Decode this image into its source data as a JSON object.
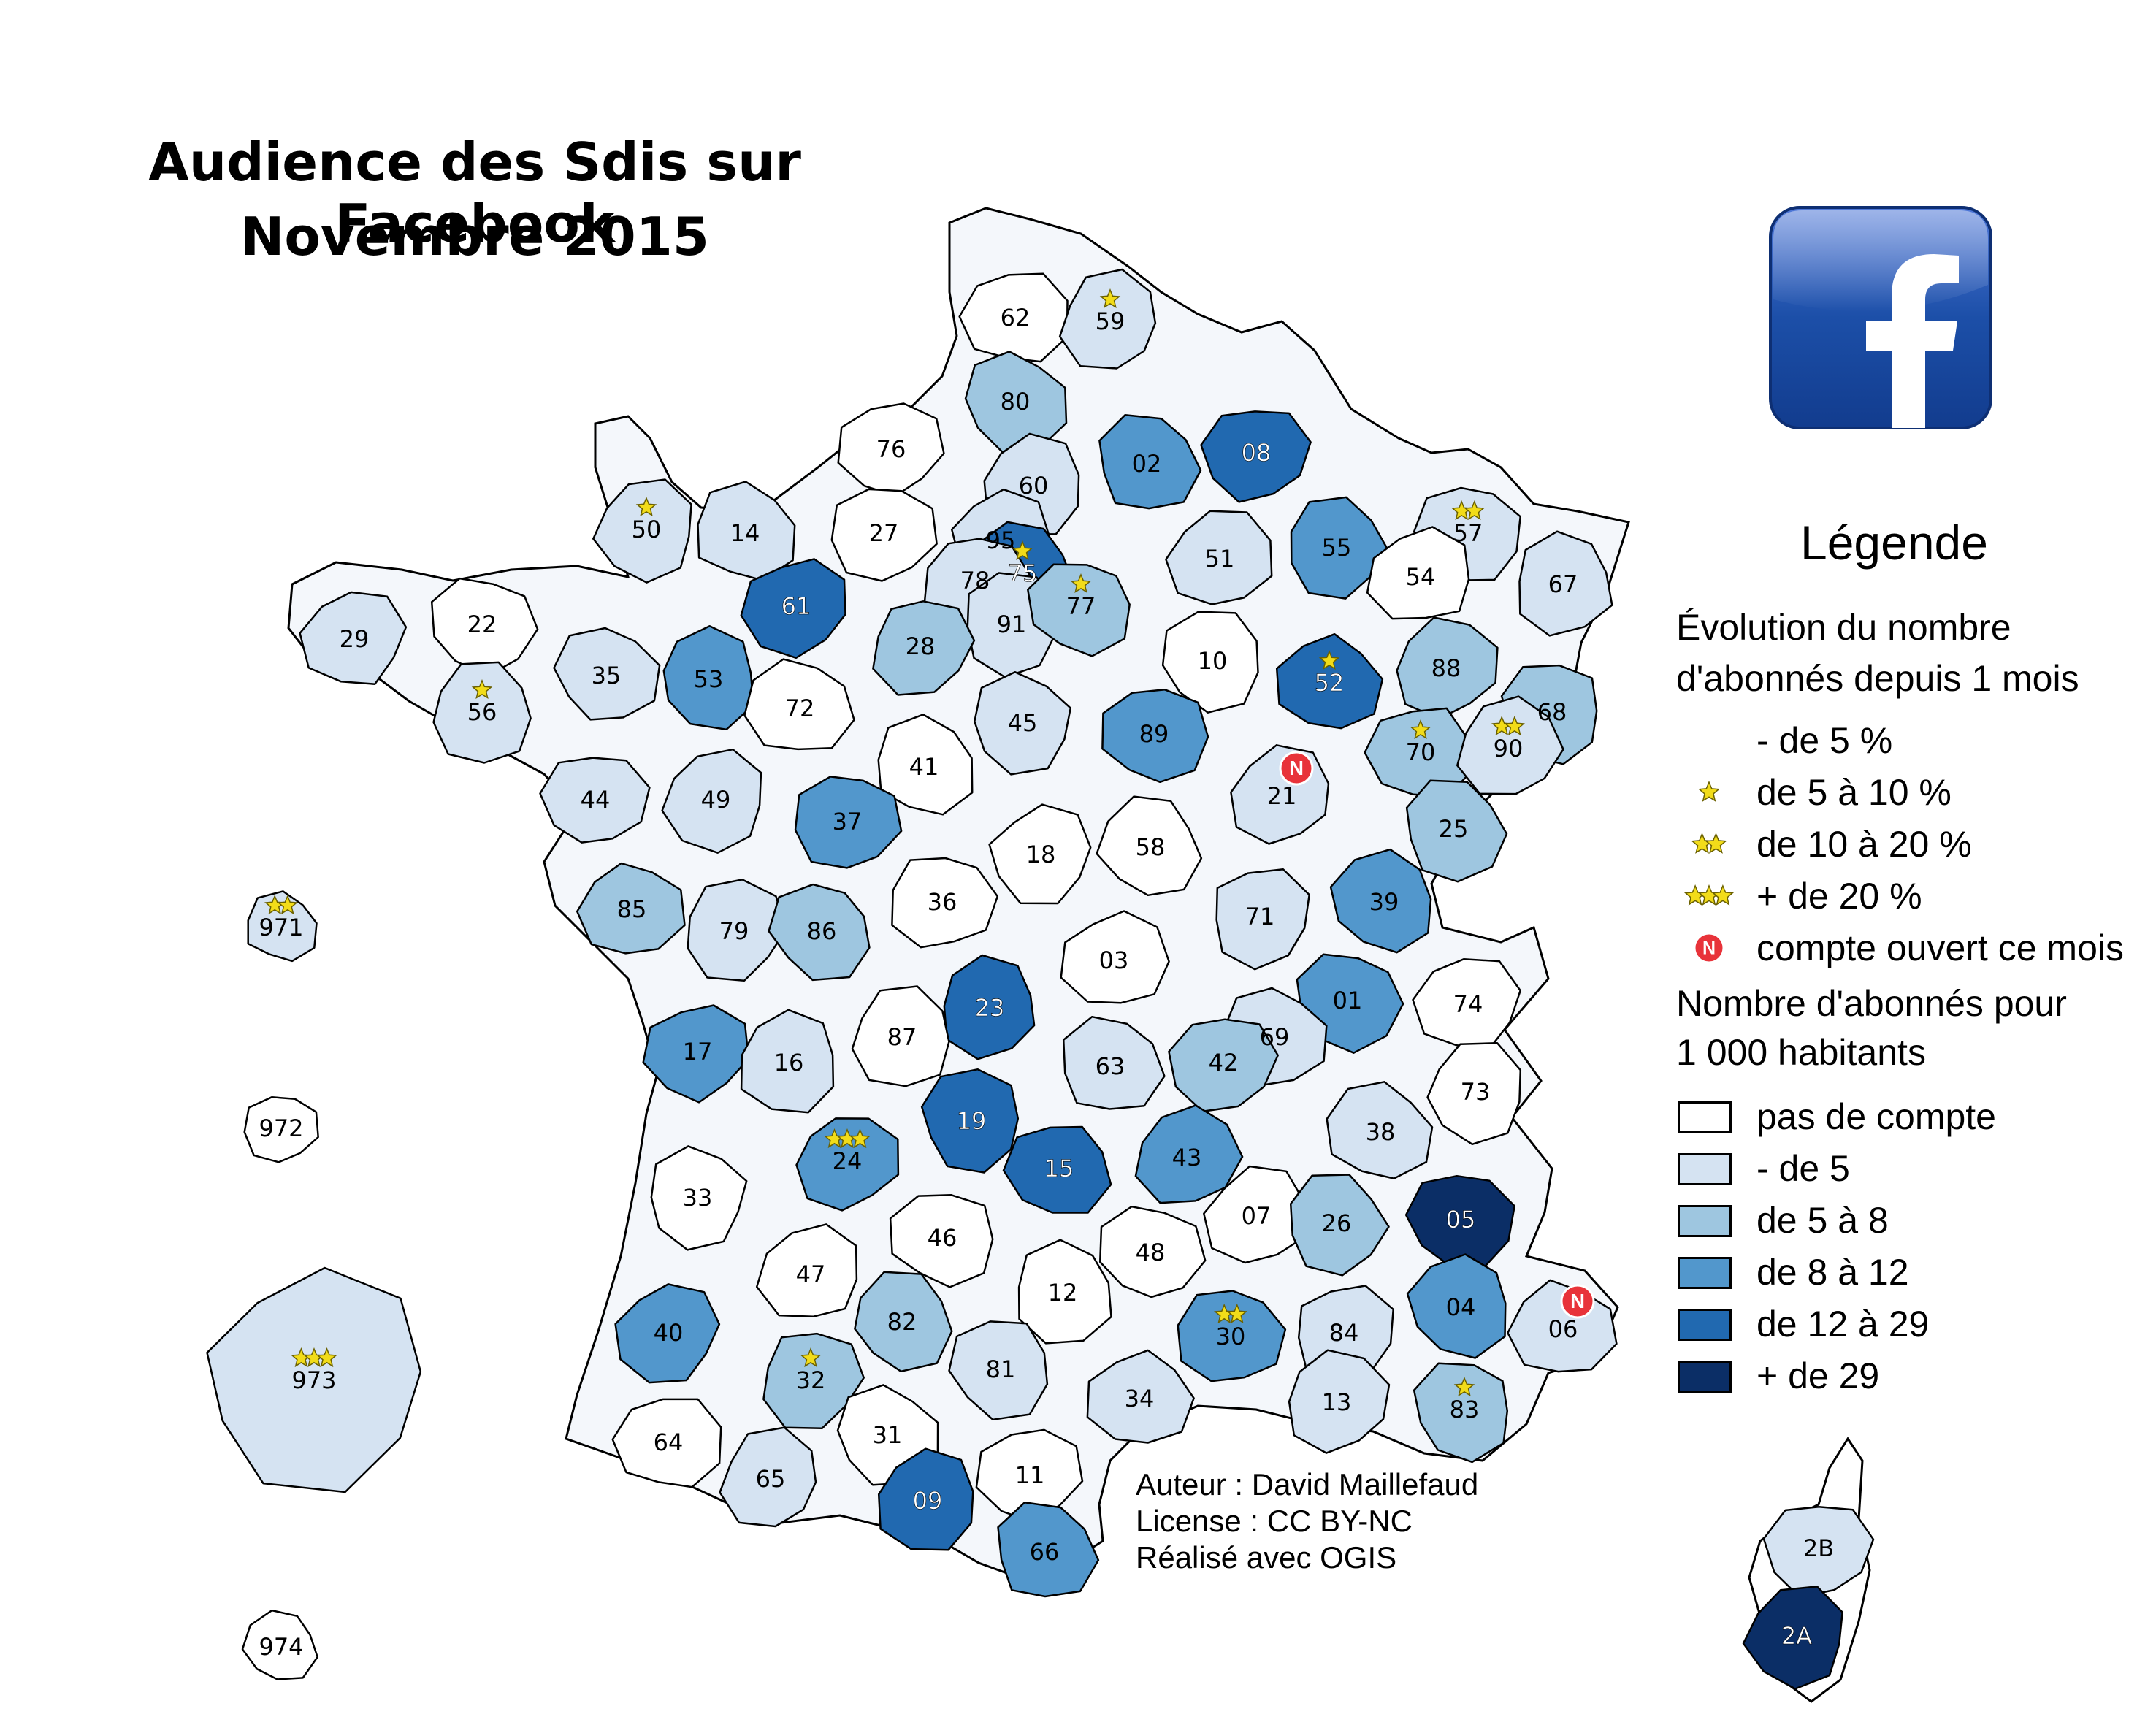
{
  "title": {
    "line1": "Audience des Sdis sur Facebook",
    "line2": "Novembre 2015"
  },
  "logo": {
    "icon": "facebook-icon",
    "letter": "f",
    "color": "#1c4fa8"
  },
  "legend": {
    "title": "Légende",
    "evolution_heading": [
      "Évolution du nombre",
      "d'abonnés depuis 1 mois"
    ],
    "evolution_items": [
      {
        "label": "- de 5 %",
        "stars": 0
      },
      {
        "label": "de 5 à 10 %",
        "stars": 1
      },
      {
        "label": "de 10 à 20 %",
        "stars": 2
      },
      {
        "label": "+ de 20 %",
        "stars": 3
      },
      {
        "label": "compte ouvert ce mois",
        "marker": "N"
      }
    ],
    "density_heading": [
      "Nombre d'abonnés pour",
      "1 000 habitants"
    ],
    "density_classes": [
      {
        "label": "pas de compte",
        "color": "#ffffff"
      },
      {
        "label": "- de 5",
        "color": "#d5e3f2"
      },
      {
        "label": "de 5 à 8",
        "color": "#9ec6e0"
      },
      {
        "label": "de 8 à 12",
        "color": "#5297cc"
      },
      {
        "label": "de 12 à 29",
        "color": "#2169b0"
      },
      {
        "label": "+ de 29",
        "color": "#0b2e66"
      }
    ]
  },
  "credits": {
    "author": "Auteur : David Maillefaud",
    "license": "License : CC BY-NC",
    "tool": "Réalisé avec OGIS"
  },
  "departments": [
    {
      "code": "62",
      "class": 0,
      "stars": 0
    },
    {
      "code": "59",
      "class": 1,
      "stars": 1
    },
    {
      "code": "80",
      "class": 2,
      "stars": 0
    },
    {
      "code": "76",
      "class": 0,
      "stars": 0
    },
    {
      "code": "60",
      "class": 1,
      "stars": 0
    },
    {
      "code": "02",
      "class": 3,
      "stars": 0
    },
    {
      "code": "08",
      "class": 4,
      "stars": 0
    },
    {
      "code": "50",
      "class": 1,
      "stars": 1
    },
    {
      "code": "14",
      "class": 1,
      "stars": 0
    },
    {
      "code": "27",
      "class": 0,
      "stars": 0
    },
    {
      "code": "95",
      "class": 1,
      "stars": 0
    },
    {
      "code": "75",
      "class": 4,
      "stars": 1
    },
    {
      "code": "78",
      "class": 1,
      "stars": 0
    },
    {
      "code": "91",
      "class": 1,
      "stars": 0
    },
    {
      "code": "77",
      "class": 2,
      "stars": 1
    },
    {
      "code": "51",
      "class": 1,
      "stars": 0
    },
    {
      "code": "55",
      "class": 3,
      "stars": 0
    },
    {
      "code": "57",
      "class": 1,
      "stars": 2
    },
    {
      "code": "54",
      "class": 0,
      "stars": 0
    },
    {
      "code": "67",
      "class": 1,
      "stars": 0
    },
    {
      "code": "22",
      "class": 0,
      "stars": 0
    },
    {
      "code": "29",
      "class": 1,
      "stars": 0
    },
    {
      "code": "56",
      "class": 1,
      "stars": 1
    },
    {
      "code": "35",
      "class": 1,
      "stars": 0
    },
    {
      "code": "61",
      "class": 4,
      "stars": 0
    },
    {
      "code": "53",
      "class": 3,
      "stars": 0
    },
    {
      "code": "72",
      "class": 0,
      "stars": 0
    },
    {
      "code": "28",
      "class": 2,
      "stars": 0
    },
    {
      "code": "10",
      "class": 0,
      "stars": 0
    },
    {
      "code": "52",
      "class": 4,
      "stars": 1
    },
    {
      "code": "88",
      "class": 2,
      "stars": 0
    },
    {
      "code": "68",
      "class": 2,
      "stars": 0
    },
    {
      "code": "70",
      "class": 2,
      "stars": 1
    },
    {
      "code": "90",
      "class": 1,
      "stars": 2
    },
    {
      "code": "45",
      "class": 1,
      "stars": 0
    },
    {
      "code": "89",
      "class": 3,
      "stars": 0
    },
    {
      "code": "21",
      "class": 1,
      "stars": 0,
      "new": true
    },
    {
      "code": "25",
      "class": 2,
      "stars": 0
    },
    {
      "code": "44",
      "class": 1,
      "stars": 0
    },
    {
      "code": "49",
      "class": 1,
      "stars": 0
    },
    {
      "code": "41",
      "class": 0,
      "stars": 0
    },
    {
      "code": "37",
      "class": 3,
      "stars": 0
    },
    {
      "code": "18",
      "class": 0,
      "stars": 0
    },
    {
      "code": "58",
      "class": 0,
      "stars": 0
    },
    {
      "code": "36",
      "class": 0,
      "stars": 0
    },
    {
      "code": "71",
      "class": 1,
      "stars": 0
    },
    {
      "code": "39",
      "class": 3,
      "stars": 0
    },
    {
      "code": "85",
      "class": 2,
      "stars": 0
    },
    {
      "code": "79",
      "class": 1,
      "stars": 0
    },
    {
      "code": "86",
      "class": 2,
      "stars": 0
    },
    {
      "code": "03",
      "class": 0,
      "stars": 0
    },
    {
      "code": "23",
      "class": 4,
      "stars": 0
    },
    {
      "code": "01",
      "class": 3,
      "stars": 0
    },
    {
      "code": "74",
      "class": 0,
      "stars": 0
    },
    {
      "code": "87",
      "class": 0,
      "stars": 0
    },
    {
      "code": "69",
      "class": 1,
      "stars": 0
    },
    {
      "code": "17",
      "class": 3,
      "stars": 0
    },
    {
      "code": "16",
      "class": 1,
      "stars": 0
    },
    {
      "code": "63",
      "class": 1,
      "stars": 0
    },
    {
      "code": "42",
      "class": 2,
      "stars": 0
    },
    {
      "code": "73",
      "class": 0,
      "stars": 0
    },
    {
      "code": "38",
      "class": 1,
      "stars": 0
    },
    {
      "code": "24",
      "class": 3,
      "stars": 3
    },
    {
      "code": "19",
      "class": 4,
      "stars": 0
    },
    {
      "code": "15",
      "class": 4,
      "stars": 0
    },
    {
      "code": "43",
      "class": 3,
      "stars": 0
    },
    {
      "code": "33",
      "class": 0,
      "stars": 0
    },
    {
      "code": "46",
      "class": 0,
      "stars": 0
    },
    {
      "code": "07",
      "class": 0,
      "stars": 0
    },
    {
      "code": "26",
      "class": 2,
      "stars": 0
    },
    {
      "code": "05",
      "class": 5,
      "stars": 0
    },
    {
      "code": "47",
      "class": 0,
      "stars": 0
    },
    {
      "code": "12",
      "class": 0,
      "stars": 0
    },
    {
      "code": "48",
      "class": 0,
      "stars": 0
    },
    {
      "code": "40",
      "class": 3,
      "stars": 0
    },
    {
      "code": "82",
      "class": 2,
      "stars": 0
    },
    {
      "code": "30",
      "class": 3,
      "stars": 2
    },
    {
      "code": "84",
      "class": 1,
      "stars": 0
    },
    {
      "code": "04",
      "class": 3,
      "stars": 0
    },
    {
      "code": "06",
      "class": 1,
      "stars": 0,
      "new": true
    },
    {
      "code": "32",
      "class": 2,
      "stars": 1
    },
    {
      "code": "81",
      "class": 1,
      "stars": 0
    },
    {
      "code": "34",
      "class": 1,
      "stars": 0
    },
    {
      "code": "13",
      "class": 1,
      "stars": 0
    },
    {
      "code": "83",
      "class": 2,
      "stars": 1
    },
    {
      "code": "64",
      "class": 0,
      "stars": 0
    },
    {
      "code": "65",
      "class": 1,
      "stars": 0
    },
    {
      "code": "31",
      "class": 0,
      "stars": 0
    },
    {
      "code": "11",
      "class": 0,
      "stars": 0
    },
    {
      "code": "09",
      "class": 4,
      "stars": 0
    },
    {
      "code": "66",
      "class": 3,
      "stars": 0
    },
    {
      "code": "2B",
      "class": 1,
      "stars": 0
    },
    {
      "code": "2A",
      "class": 5,
      "stars": 0
    },
    {
      "code": "971",
      "class": 1,
      "stars": 2
    },
    {
      "code": "972",
      "class": 0,
      "stars": 0
    },
    {
      "code": "973",
      "class": 1,
      "stars": 3
    },
    {
      "code": "974",
      "class": 0,
      "stars": 0
    }
  ]
}
